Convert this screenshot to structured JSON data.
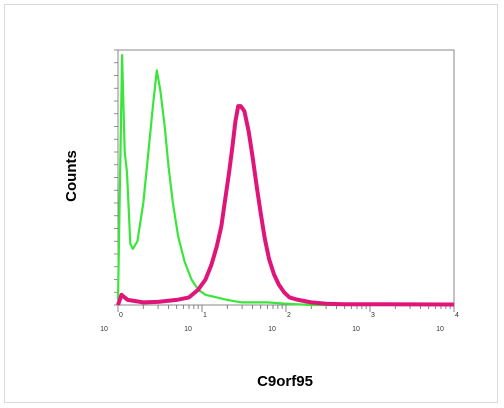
{
  "chart_data": {
    "type": "line",
    "title": "",
    "xlabel": "C9orf95",
    "ylabel": "Counts",
    "xscale": "log",
    "xlim": [
      1,
      10000
    ],
    "ylim": [
      0,
      100
    ],
    "x_tick_labels": [
      {
        "base": "10",
        "exp": "0",
        "value": 1
      },
      {
        "base": "10",
        "exp": "1",
        "value": 10
      },
      {
        "base": "10",
        "exp": "2",
        "value": 100
      },
      {
        "base": "10",
        "exp": "3",
        "value": 1000
      },
      {
        "base": "10",
        "exp": "4",
        "value": 10000
      }
    ],
    "grid": false,
    "series": [
      {
        "color": "#39e639",
        "points": [
          [
            1.0,
            2
          ],
          [
            1.12,
            98
          ],
          [
            1.2,
            60
          ],
          [
            1.28,
            52
          ],
          [
            1.4,
            24
          ],
          [
            1.5,
            22
          ],
          [
            1.7,
            25
          ],
          [
            2.0,
            40
          ],
          [
            2.3,
            60
          ],
          [
            2.6,
            78
          ],
          [
            2.9,
            92
          ],
          [
            3.2,
            84
          ],
          [
            3.6,
            70
          ],
          [
            4.0,
            54
          ],
          [
            4.5,
            40
          ],
          [
            5.2,
            27
          ],
          [
            6.2,
            17
          ],
          [
            7.5,
            10
          ],
          [
            9,
            6
          ],
          [
            11,
            4
          ],
          [
            15,
            3
          ],
          [
            20,
            2
          ],
          [
            30,
            1
          ],
          [
            60,
            1
          ],
          [
            100,
            0.5
          ],
          [
            200,
            0
          ],
          [
            10000,
            0
          ]
        ]
      },
      {
        "color": "#e0157a",
        "points": [
          [
            1.0,
            0
          ],
          [
            1.1,
            4
          ],
          [
            1.3,
            2
          ],
          [
            2,
            1
          ],
          [
            3,
            1.2
          ],
          [
            5,
            2
          ],
          [
            7,
            3
          ],
          [
            9,
            6
          ],
          [
            11,
            10
          ],
          [
            13,
            16
          ],
          [
            15,
            23
          ],
          [
            17,
            31
          ],
          [
            19,
            42
          ],
          [
            21,
            52
          ],
          [
            23,
            62
          ],
          [
            25,
            72
          ],
          [
            27,
            78
          ],
          [
            29,
            78
          ],
          [
            32,
            76
          ],
          [
            36,
            68
          ],
          [
            40,
            58
          ],
          [
            45,
            46
          ],
          [
            50,
            36
          ],
          [
            56,
            26
          ],
          [
            63,
            18
          ],
          [
            72,
            12
          ],
          [
            82,
            8
          ],
          [
            95,
            5
          ],
          [
            110,
            3
          ],
          [
            140,
            2
          ],
          [
            200,
            1
          ],
          [
            300,
            0.5
          ],
          [
            500,
            0.3
          ],
          [
            10000,
            0.2
          ]
        ]
      }
    ]
  }
}
